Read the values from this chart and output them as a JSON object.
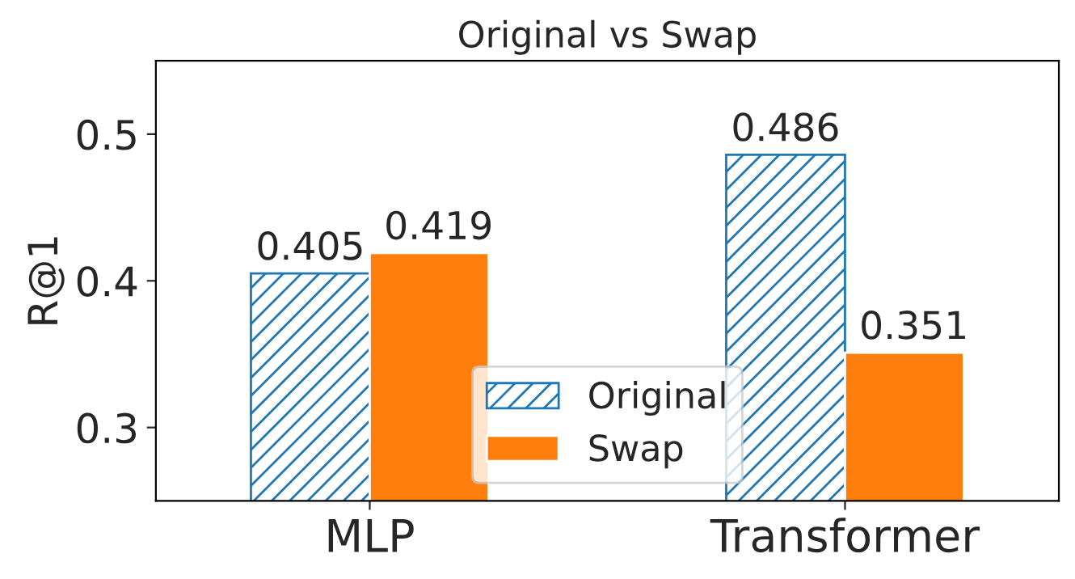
{
  "chart_data": {
    "type": "bar",
    "title": "Original vs Swap",
    "ylabel": "R@1",
    "categories": [
      "MLP",
      "Transformer"
    ],
    "series": [
      {
        "name": "Original",
        "color": "#1f77b4",
        "values": [
          0.405,
          0.486
        ]
      },
      {
        "name": "Swap",
        "color": "#ff7f0e",
        "values": [
          0.419,
          0.351
        ]
      }
    ],
    "ylim": [
      0.25,
      0.55
    ],
    "yticks": [
      0.3,
      0.4,
      0.5
    ],
    "data_labels": true,
    "legend": "bottom",
    "grid": false
  }
}
